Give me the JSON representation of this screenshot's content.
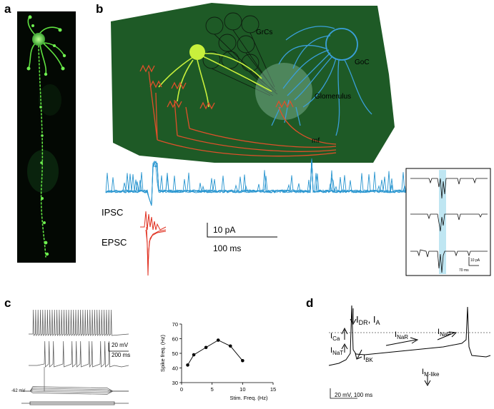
{
  "panels": {
    "a": "a",
    "b": "b",
    "c": "c",
    "d": "d"
  },
  "panel_b": {
    "grcs": "GrCs",
    "goc": "GoC",
    "glomerulus": "Glomerulus",
    "mf": "mf",
    "ipsc": "IPSC",
    "epsc": "EPSC",
    "scale_current": "10 pA",
    "scale_time": "100 ms",
    "inset_scale_current": "10 pA",
    "inset_scale_time": "70 ms"
  },
  "panel_c": {
    "scale_voltage": "20 mV",
    "scale_time": "200 ms",
    "resting_potential": "-62 mV"
  },
  "panel_d": {
    "scale": "20 mV, 100 ms",
    "currents": {
      "dr_a": {
        "base1": "I",
        "sub1": "DR",
        "sep": ", ",
        "base2": "I",
        "sub2": "A"
      },
      "ca": {
        "base": "I",
        "sub": "Ca"
      },
      "nat": {
        "base": "I",
        "sub": "NaT"
      },
      "bk": {
        "base": "I",
        "sub": "BK"
      },
      "nar": {
        "base": "I",
        "sub": "NaR"
      },
      "nap": {
        "base": "I",
        "sub": "NaP"
      },
      "mlike": {
        "base": "I",
        "sub": "M-like"
      }
    }
  },
  "colors": {
    "tissue_green": "#1e5a26",
    "granule_yellow": "#c8f03c",
    "mossy_fiber_red": "#e0502a",
    "golgi_blue": "#3a9fd8",
    "trace_blue": "#2a96d0",
    "epsc_red": "#e03020",
    "micrograph_green": "#5fe040"
  },
  "chart_data": {
    "type": "line",
    "title": "",
    "xlabel": "Stim. Freq. (Hz)",
    "ylabel": "Spike freq. (Hz)",
    "xlim": [
      0,
      15
    ],
    "ylim": [
      30,
      70
    ],
    "x_ticks": [
      "0",
      "5",
      "10",
      "15"
    ],
    "y_ticks": [
      "30",
      "40",
      "50",
      "60",
      "70"
    ],
    "series": [
      {
        "x": [
          1,
          2,
          4,
          6,
          8,
          10
        ],
        "values": [
          42,
          49,
          54,
          59,
          55,
          45
        ]
      }
    ]
  }
}
